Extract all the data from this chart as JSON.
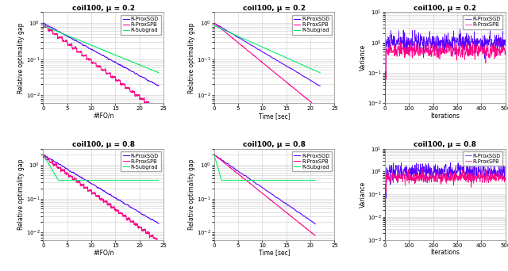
{
  "titles": [
    [
      "coil100, μ = 0.2",
      "coil100, μ = 0.2",
      "coil100, μ = 0.2"
    ],
    [
      "coil100, μ = 0.8",
      "coil100, μ = 0.8",
      "coil100, μ = 0.8"
    ]
  ],
  "xlabels": [
    [
      "#IFO/n",
      "Time [sec]",
      "Iterations"
    ],
    [
      "#IFO/n",
      "Time [sec]",
      "Iterations"
    ]
  ],
  "ylabels": [
    [
      "Relative optimality gap",
      "Relative optimality gap",
      "Variance"
    ],
    [
      "Relative optimality gap",
      "Relative optimality gap",
      "Variance"
    ]
  ],
  "colors": {
    "R-ProxSGD": "#5500ff",
    "R-ProxSPB": "#ff0088",
    "R-Subgrad": "#00ee66"
  },
  "bg_color": "#ffffff",
  "grid_color": "#cccccc"
}
